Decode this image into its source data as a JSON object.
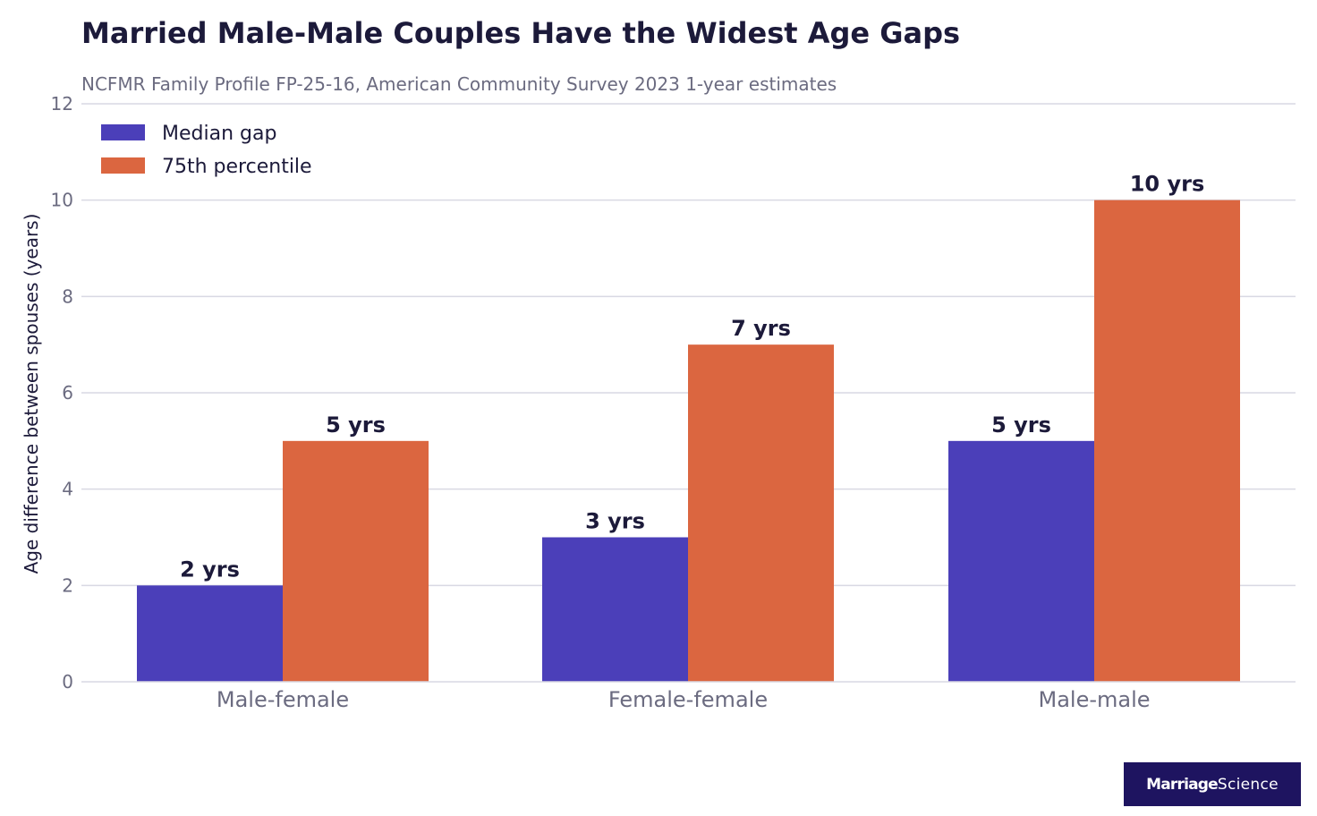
{
  "header": {
    "title": "Married Male-Male Couples Have the Widest Age Gaps",
    "subtitle": "NCFMR Family Profile FP-25-16, American Community Survey 2023 1-year estimates"
  },
  "colors": {
    "median": "#4b3fb9",
    "p75": "#db6640",
    "grid": "#d9d9e3",
    "text_dark": "#1c1a3a",
    "text_muted": "#6b6b80",
    "logo_bg": "#1e1460"
  },
  "chart_data": {
    "type": "bar",
    "title": "Married Male-Male Couples Have the Widest Age Gaps",
    "subtitle": "NCFMR Family Profile FP-25-16, American Community Survey 2023 1-year estimates",
    "xlabel": "",
    "ylabel": "Age difference between spouses (years)",
    "ylim": [
      0,
      12
    ],
    "yticks": [
      0,
      2,
      4,
      6,
      8,
      10,
      12
    ],
    "grid": true,
    "legend_position": "top-left",
    "categories": [
      "Male-female",
      "Female-female",
      "Male-male"
    ],
    "series": [
      {
        "name": "Median gap",
        "values": [
          2,
          3,
          5
        ],
        "labels": [
          "2 yrs",
          "3 yrs",
          "5 yrs"
        ],
        "color": "#4b3fb9"
      },
      {
        "name": "75th percentile",
        "values": [
          5,
          7,
          10
        ],
        "labels": [
          "5 yrs",
          "7 yrs",
          "10 yrs"
        ],
        "color": "#db6640"
      }
    ]
  },
  "logo": {
    "part1": "Marriage",
    "part2": "Science"
  }
}
